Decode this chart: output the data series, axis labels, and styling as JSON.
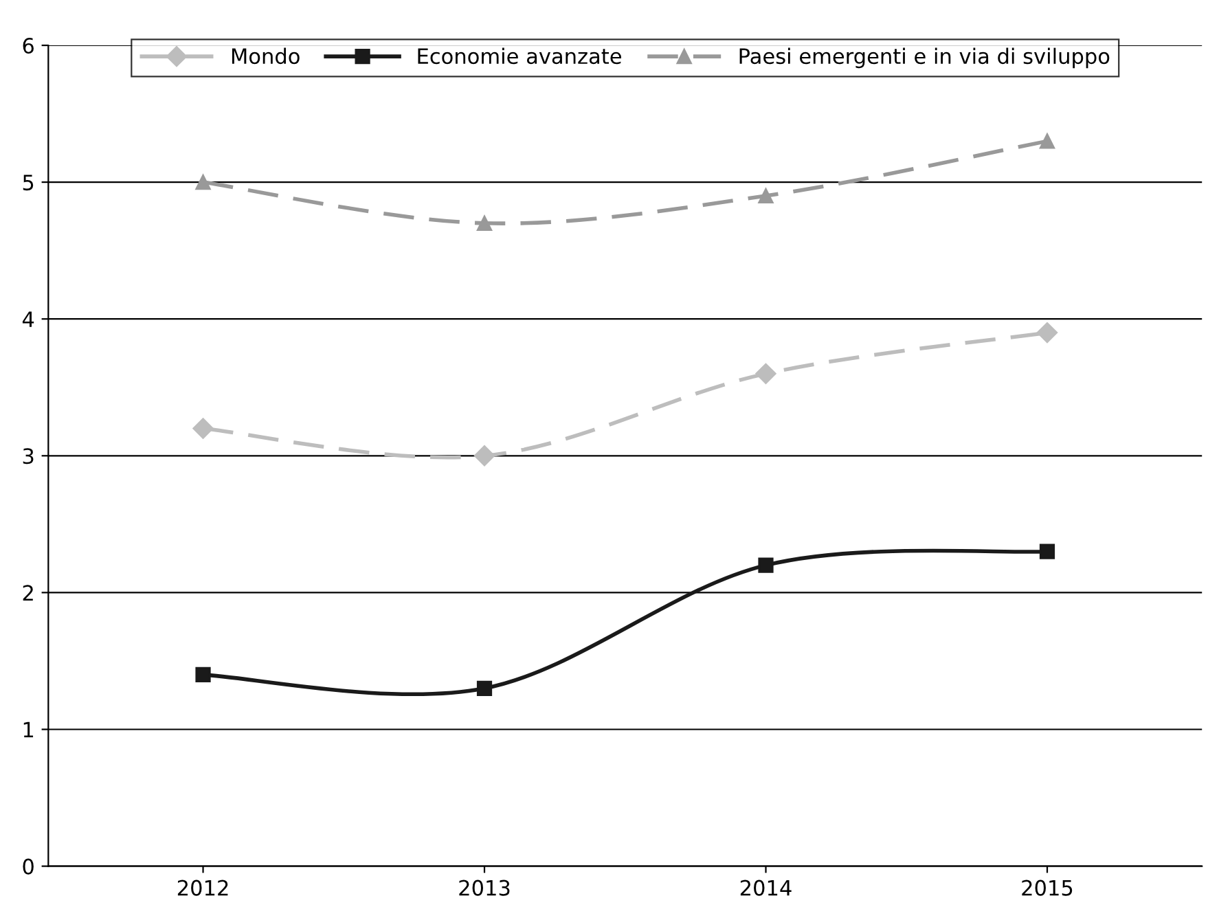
{
  "chart_data": {
    "type": "line",
    "categories": [
      "2012",
      "2013",
      "2014",
      "2015"
    ],
    "series": [
      {
        "name": "Mondo",
        "color": "#bdbdbd",
        "values": [
          3.2,
          3.0,
          3.6,
          3.9
        ],
        "marker": "diamond",
        "line_style": "dashed"
      },
      {
        "name": "Economie avanzate",
        "color": "#1a1a1a",
        "values": [
          1.4,
          1.3,
          2.2,
          2.3
        ],
        "marker": "square",
        "line_style": "solid"
      },
      {
        "name": "Paesi emergenti e in via di sviluppo",
        "color": "#999999",
        "values": [
          5.0,
          4.7,
          4.9,
          5.3
        ],
        "marker": "triangle",
        "line_style": "dashed"
      }
    ],
    "ylim": [
      0,
      6
    ],
    "yticks": [
      0,
      1,
      2,
      3,
      4,
      5,
      6
    ],
    "grid": "y",
    "legend": "top"
  }
}
